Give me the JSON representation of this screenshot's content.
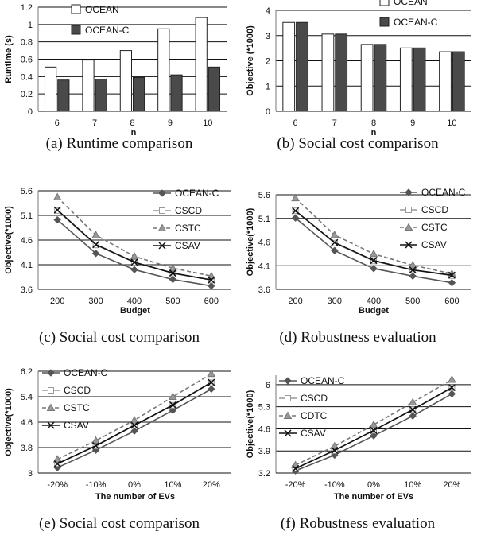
{
  "chart_data": [
    {
      "type": "bar",
      "caption": "(a) Runtime comparison",
      "xlabel": "n",
      "ylabel": "Runtime (s)",
      "categories": [
        "6",
        "7",
        "8",
        "9",
        "10"
      ],
      "ylim": [
        0,
        1.2
      ],
      "yticks": [
        "0",
        "0.2",
        "0.4",
        "0.6",
        "0.8",
        "1",
        "1.2"
      ],
      "grid": true,
      "legend": "top-left",
      "series": [
        {
          "name": "OCEAN",
          "values": [
            0.51,
            0.59,
            0.7,
            0.95,
            1.08
          ],
          "color": "#ffffff"
        },
        {
          "name": "OCEAN-C",
          "values": [
            0.36,
            0.37,
            0.39,
            0.42,
            0.51
          ],
          "color": "#4a4a4a"
        }
      ]
    },
    {
      "type": "bar",
      "caption": "(b) Social cost comparison",
      "xlabel": "n",
      "ylabel": "Objective (*1000)",
      "categories": [
        "6",
        "7",
        "8",
        "9",
        "10"
      ],
      "ylim": [
        0,
        4
      ],
      "yticks": [
        "0",
        "1",
        "2",
        "3",
        "4"
      ],
      "grid": true,
      "legend": "top-right",
      "series": [
        {
          "name": "OCEAN",
          "values": [
            3.52,
            3.06,
            2.65,
            2.51,
            2.36
          ],
          "color": "#ffffff"
        },
        {
          "name": "OCEAN-C",
          "values": [
            3.52,
            3.06,
            2.65,
            2.51,
            2.36
          ],
          "color": "#4a4a4a"
        }
      ]
    },
    {
      "type": "line",
      "caption": "(c) Social cost comparison",
      "xlabel": "Budget",
      "ylabel": "Objective(*1000)",
      "categories": [
        "200",
        "300",
        "400",
        "500",
        "600"
      ],
      "ylim": [
        3.6,
        5.6
      ],
      "yticks": [
        "3.6",
        "4.1",
        "4.6",
        "5.1",
        "5.6"
      ],
      "grid": true,
      "legend": "top-right",
      "series": [
        {
          "name": "OCEAN-C",
          "values": [
            5.01,
            4.33,
            4.0,
            3.8,
            3.67
          ]
        },
        {
          "name": "CSCD",
          "values": [
            5.2,
            4.5,
            4.15,
            3.93,
            3.79
          ]
        },
        {
          "name": "CSTC",
          "values": [
            5.47,
            4.7,
            4.27,
            4.03,
            3.87
          ]
        },
        {
          "name": "CSAV",
          "values": [
            5.21,
            4.51,
            4.15,
            3.93,
            3.79
          ]
        }
      ]
    },
    {
      "type": "line",
      "caption": "(d) Robustness evaluation",
      "xlabel": "Budget",
      "ylabel": "Objective(*1000)",
      "categories": [
        "200",
        "300",
        "400",
        "500",
        "600"
      ],
      "ylim": [
        3.6,
        5.6
      ],
      "yticks": [
        "3.6",
        "4.1",
        "4.6",
        "5.1",
        "5.6"
      ],
      "grid": true,
      "legend": "top-right",
      "series": [
        {
          "name": "OCEAN-C",
          "values": [
            5.11,
            4.42,
            4.04,
            3.88,
            3.74
          ]
        },
        {
          "name": "CSCD",
          "values": [
            5.26,
            4.58,
            4.2,
            4.01,
            3.89
          ]
        },
        {
          "name": "CSTC",
          "values": [
            5.53,
            4.75,
            4.35,
            4.11,
            3.93
          ]
        },
        {
          "name": "CSAV",
          "values": [
            5.26,
            4.59,
            4.21,
            4.01,
            3.9
          ]
        }
      ]
    },
    {
      "type": "line",
      "caption": "(e) Social cost comparison",
      "xlabel": "The number of EVs",
      "ylabel": "Objective(*1000)",
      "categories": [
        "-20%",
        "-10%",
        "0%",
        "10%",
        "20%"
      ],
      "ylim": [
        3,
        6.2
      ],
      "yticks": [
        "3",
        "3.8",
        "4.6",
        "5.4",
        "6.2"
      ],
      "grid": true,
      "legend": "top-left",
      "series": [
        {
          "name": "OCEAN-C",
          "values": [
            3.17,
            3.72,
            4.32,
            4.97,
            5.64
          ]
        },
        {
          "name": "CSCD",
          "values": [
            3.3,
            3.85,
            4.5,
            5.13,
            5.84
          ]
        },
        {
          "name": "CSTC",
          "values": [
            3.43,
            4.02,
            4.66,
            5.4,
            6.12
          ]
        },
        {
          "name": "CSAV",
          "values": [
            3.29,
            3.86,
            4.5,
            5.14,
            5.85
          ]
        }
      ]
    },
    {
      "type": "line",
      "caption": "(f) Robustness evaluation",
      "xlabel": "The number of EVs",
      "ylabel": "Objective(*1000)",
      "categories": [
        "-20%",
        "-10%",
        "0%",
        "10%",
        "20%"
      ],
      "ylim": [
        3.2,
        6.3
      ],
      "yticks": [
        "3.2",
        "3.9",
        "4.6",
        "5.3",
        "6"
      ],
      "grid": true,
      "legend": "top-left",
      "series": [
        {
          "name": "OCEAN-C",
          "values": [
            3.27,
            3.77,
            4.38,
            5.01,
            5.71
          ]
        },
        {
          "name": "CSCD",
          "values": [
            3.35,
            3.91,
            4.55,
            5.21,
            5.9
          ]
        },
        {
          "name": "CDTC",
          "values": [
            3.45,
            4.05,
            4.73,
            5.44,
            6.16
          ]
        },
        {
          "name": "CSAV",
          "values": [
            3.34,
            3.92,
            4.55,
            5.21,
            5.91
          ]
        }
      ]
    }
  ]
}
